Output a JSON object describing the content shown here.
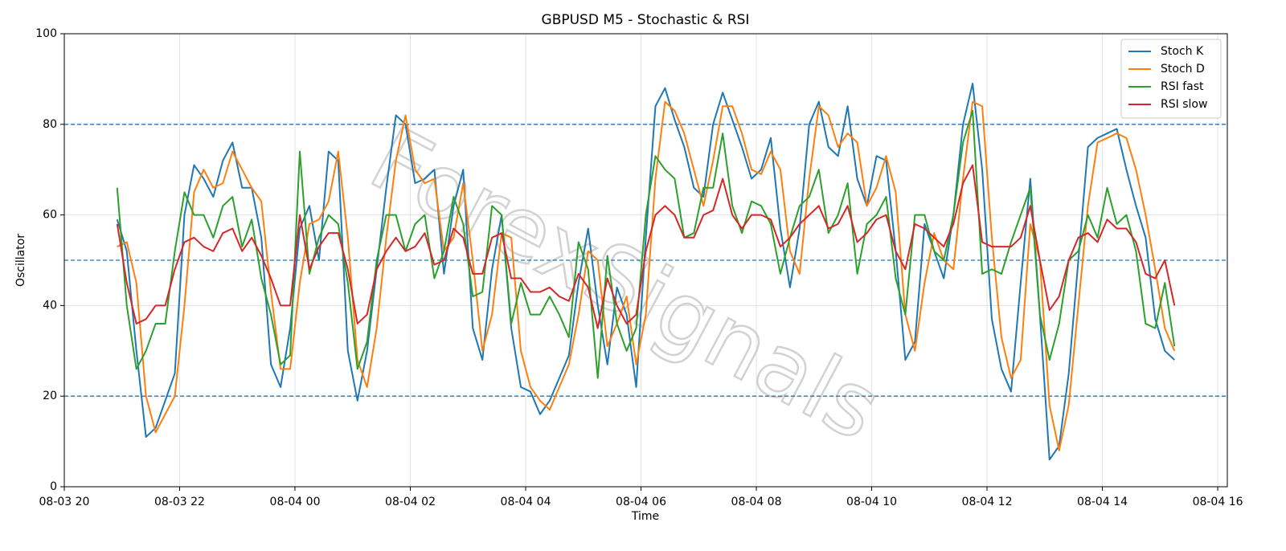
{
  "chart_data": {
    "type": "line",
    "title": "GBPUSD M5 - Stochastic & RSI",
    "x_label": "Time",
    "y_label": "Oscillator",
    "watermark": "ForexSignals",
    "x": [
      "08-03 20:55",
      "08-03 21:05",
      "08-03 21:15",
      "08-03 21:25",
      "08-03 21:35",
      "08-03 21:45",
      "08-03 21:55",
      "08-03 22:05",
      "08-03 22:15",
      "08-03 22:25",
      "08-03 22:35",
      "08-03 22:45",
      "08-03 22:55",
      "08-03 23:05",
      "08-03 23:15",
      "08-03 23:25",
      "08-03 23:35",
      "08-03 23:45",
      "08-03 23:55",
      "08-04 00:05",
      "08-04 00:15",
      "08-04 00:25",
      "08-04 00:35",
      "08-04 00:45",
      "08-04 00:55",
      "08-04 01:05",
      "08-04 01:15",
      "08-04 01:25",
      "08-04 01:35",
      "08-04 01:45",
      "08-04 01:55",
      "08-04 02:05",
      "08-04 02:15",
      "08-04 02:25",
      "08-04 02:35",
      "08-04 02:45",
      "08-04 02:55",
      "08-04 03:05",
      "08-04 03:15",
      "08-04 03:25",
      "08-04 03:35",
      "08-04 03:45",
      "08-04 03:55",
      "08-04 04:05",
      "08-04 04:15",
      "08-04 04:25",
      "08-04 04:35",
      "08-04 04:45",
      "08-04 04:55",
      "08-04 05:05",
      "08-04 05:15",
      "08-04 05:25",
      "08-04 05:35",
      "08-04 05:45",
      "08-04 05:55",
      "08-04 06:05",
      "08-04 06:15",
      "08-04 06:25",
      "08-04 06:35",
      "08-04 06:45",
      "08-04 06:55",
      "08-04 07:05",
      "08-04 07:15",
      "08-04 07:25",
      "08-04 07:35",
      "08-04 07:45",
      "08-04 07:55",
      "08-04 08:05",
      "08-04 08:15",
      "08-04 08:25",
      "08-04 08:35",
      "08-04 08:45",
      "08-04 08:55",
      "08-04 09:05",
      "08-04 09:15",
      "08-04 09:25",
      "08-04 09:35",
      "08-04 09:45",
      "08-04 09:55",
      "08-04 10:05",
      "08-04 10:15",
      "08-04 10:25",
      "08-04 10:35",
      "08-04 10:45",
      "08-04 10:55",
      "08-04 11:05",
      "08-04 11:15",
      "08-04 11:25",
      "08-04 11:35",
      "08-04 11:45",
      "08-04 11:55",
      "08-04 12:05",
      "08-04 12:15",
      "08-04 12:25",
      "08-04 12:35",
      "08-04 12:45",
      "08-04 12:55",
      "08-04 13:05",
      "08-04 13:15",
      "08-04 13:25",
      "08-04 13:35",
      "08-04 13:45",
      "08-04 13:55",
      "08-04 14:05",
      "08-04 14:15",
      "08-04 14:25",
      "08-04 14:35",
      "08-04 14:45",
      "08-04 14:55",
      "08-04 15:05",
      "08-04 15:15"
    ],
    "series": [
      {
        "name": "Stoch K",
        "color": "#1f77b4",
        "values": [
          59,
          52,
          30,
          11,
          13,
          19,
          25,
          60,
          71,
          68,
          64,
          72,
          76,
          66,
          66,
          55,
          27,
          22,
          35,
          57,
          62,
          50,
          74,
          72,
          30,
          19,
          30,
          48,
          66,
          82,
          80,
          67,
          68,
          70,
          47,
          62,
          70,
          35,
          28,
          48,
          60,
          35,
          22,
          21,
          16,
          19,
          24,
          29,
          45,
          57,
          40,
          27,
          44,
          38,
          22,
          55,
          84,
          88,
          81,
          75,
          66,
          64,
          80,
          87,
          81,
          75,
          68,
          70,
          77,
          57,
          44,
          57,
          80,
          85,
          75,
          73,
          84,
          68,
          62,
          73,
          72,
          52,
          28,
          32,
          58,
          52,
          46,
          60,
          80,
          89,
          70,
          37,
          26,
          21,
          45,
          68,
          38,
          6,
          9,
          25,
          50,
          75,
          77,
          78,
          79,
          70,
          62,
          55,
          37,
          30,
          28
        ]
      },
      {
        "name": "Stoch D",
        "color": "#ff7f0e",
        "values": [
          53,
          54,
          45,
          20,
          12,
          16,
          20,
          40,
          65,
          70,
          66,
          67,
          74,
          70,
          66,
          63,
          43,
          26,
          26,
          45,
          58,
          59,
          63,
          74,
          55,
          28,
          22,
          35,
          55,
          72,
          82,
          70,
          67,
          68,
          52,
          55,
          67,
          50,
          30,
          38,
          56,
          55,
          30,
          22,
          19,
          17,
          22,
          27,
          38,
          52,
          50,
          31,
          36,
          42,
          27,
          38,
          68,
          85,
          83,
          78,
          70,
          62,
          72,
          84,
          84,
          78,
          70,
          69,
          74,
          70,
          52,
          47,
          68,
          84,
          82,
          75,
          78,
          76,
          62,
          66,
          73,
          65,
          38,
          30,
          45,
          56,
          50,
          48,
          68,
          85,
          84,
          55,
          33,
          24,
          28,
          58,
          50,
          18,
          8,
          18,
          40,
          62,
          76,
          77,
          78,
          77,
          70,
          60,
          48,
          35,
          30
        ]
      },
      {
        "name": "RSI fast",
        "color": "#2ca02c",
        "values": [
          66,
          40,
          26,
          30,
          36,
          36,
          52,
          65,
          60,
          60,
          55,
          62,
          64,
          53,
          59,
          46,
          38,
          27,
          29,
          74,
          47,
          55,
          60,
          58,
          45,
          26,
          32,
          50,
          60,
          60,
          52,
          58,
          60,
          46,
          52,
          64,
          58,
          42,
          43,
          62,
          60,
          36,
          45,
          38,
          38,
          42,
          38,
          33,
          54,
          48,
          24,
          51,
          36,
          30,
          35,
          60,
          73,
          70,
          68,
          55,
          56,
          66,
          66,
          78,
          62,
          56,
          63,
          62,
          58,
          47,
          55,
          62,
          64,
          70,
          56,
          60,
          67,
          47,
          58,
          60,
          64,
          46,
          38,
          60,
          60,
          52,
          50,
          60,
          76,
          83,
          47,
          48,
          47,
          54,
          60,
          66,
          38,
          28,
          36,
          50,
          52,
          60,
          55,
          66,
          58,
          60,
          52,
          36,
          35,
          45,
          31
        ]
      },
      {
        "name": "RSI slow",
        "color": "#d62728",
        "values": [
          58,
          45,
          36,
          37,
          40,
          40,
          48,
          54,
          55,
          53,
          52,
          56,
          57,
          52,
          55,
          51,
          46,
          40,
          40,
          60,
          48,
          53,
          56,
          56,
          48,
          36,
          38,
          48,
          52,
          55,
          52,
          53,
          56,
          49,
          50,
          57,
          55,
          47,
          47,
          55,
          56,
          46,
          46,
          43,
          43,
          44,
          42,
          41,
          47,
          44,
          35,
          46,
          40,
          36,
          38,
          52,
          60,
          62,
          60,
          55,
          55,
          60,
          61,
          68,
          60,
          57,
          60,
          60,
          59,
          53,
          55,
          58,
          60,
          62,
          57,
          58,
          62,
          54,
          56,
          59,
          60,
          52,
          48,
          58,
          57,
          55,
          53,
          58,
          67,
          71,
          54,
          53,
          53,
          53,
          55,
          62,
          50,
          39,
          42,
          50,
          55,
          56,
          54,
          59,
          57,
          57,
          54,
          47,
          46,
          50,
          40
        ]
      }
    ],
    "xlim": [
      "08-03 20:00",
      "08-04 16:10"
    ],
    "xticks": [
      "08-03 20",
      "08-03 22",
      "08-04 00",
      "08-04 02",
      "08-04 04",
      "08-04 06",
      "08-04 08",
      "08-04 10",
      "08-04 12",
      "08-04 14",
      "08-04 16"
    ],
    "ylim": [
      0,
      100
    ],
    "yticks": [
      0,
      20,
      40,
      60,
      80,
      100
    ],
    "hlines": [
      20,
      50,
      80
    ],
    "hline_color": "#1f77b4",
    "grid": true,
    "legend": "upper right"
  }
}
